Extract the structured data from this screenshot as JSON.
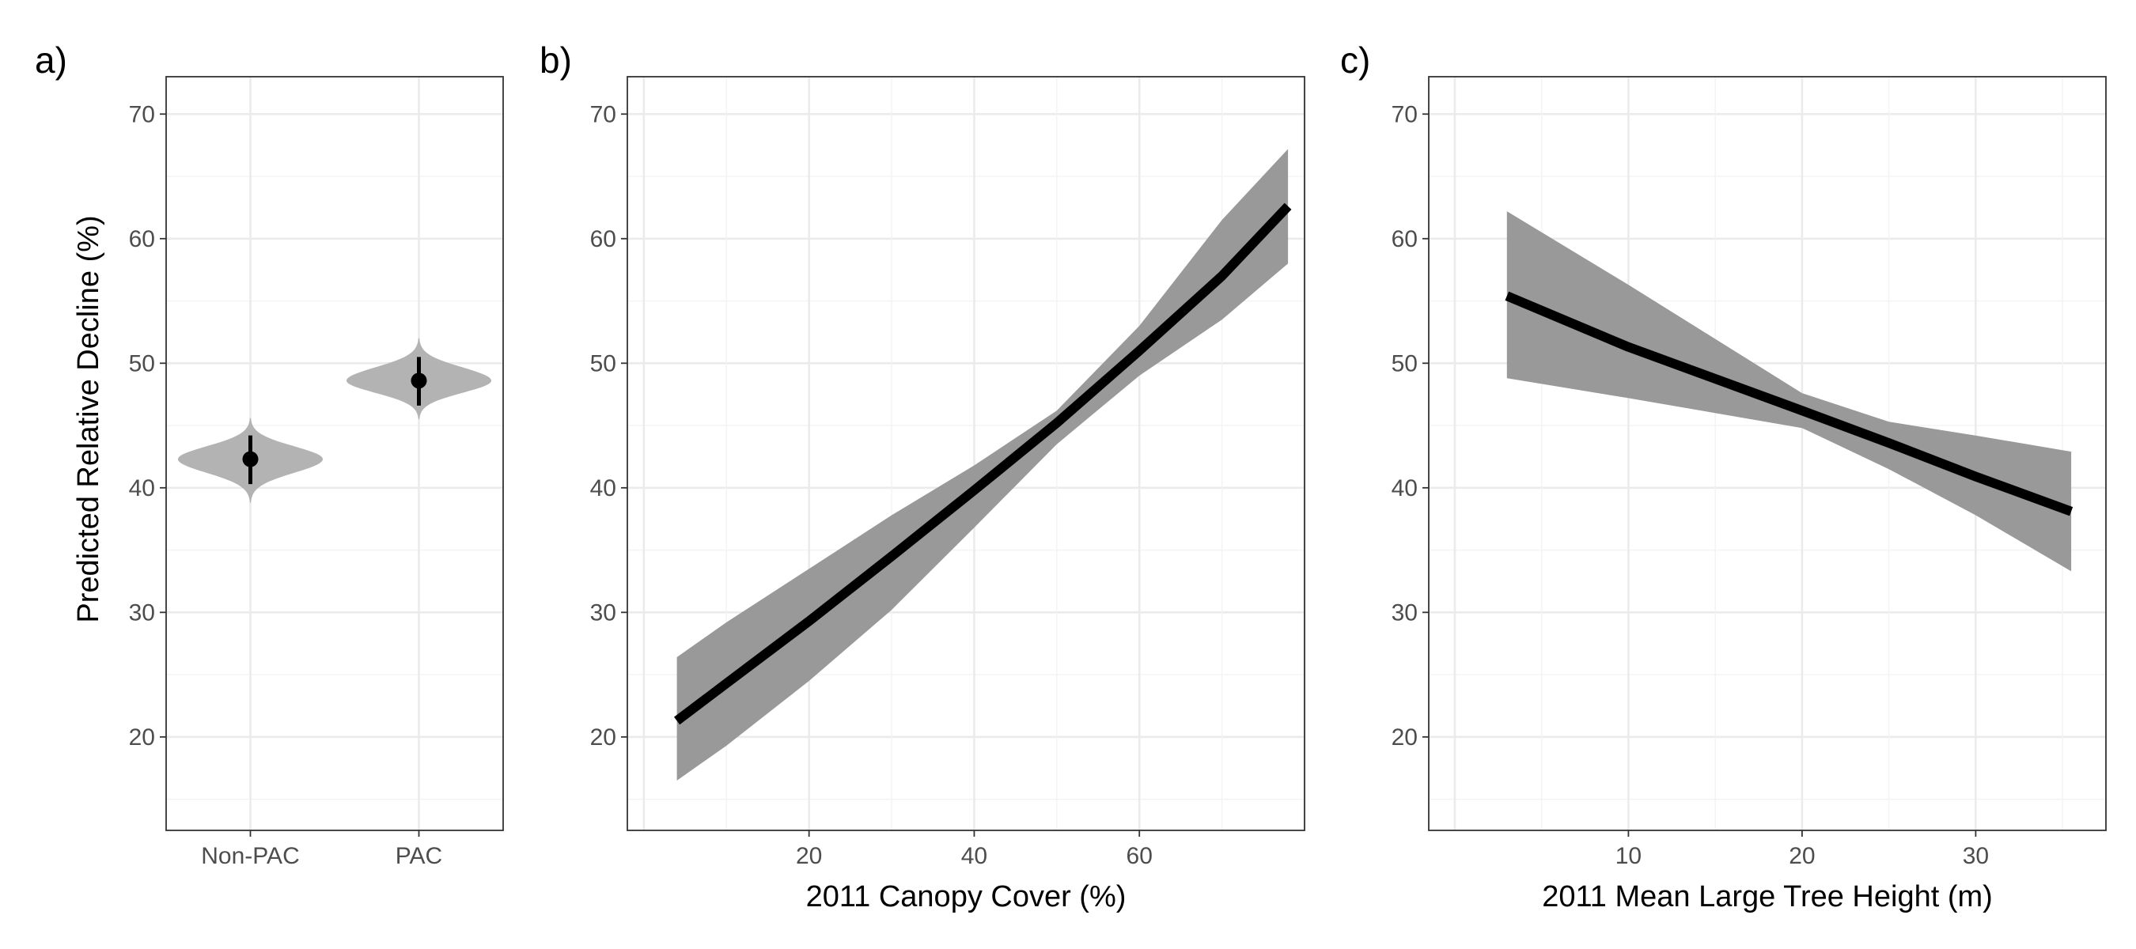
{
  "figure": {
    "ylabel": "Predicted Relative Decline (%)"
  },
  "chart_data": [
    {
      "panel_label": "a)",
      "type": "violin",
      "xlabel": "",
      "ylabel": "Predicted Relative Decline (%)",
      "ylim": [
        12.5,
        73
      ],
      "yticks": [
        20,
        30,
        40,
        50,
        60,
        70
      ],
      "categories": [
        "Non-PAC",
        "PAC"
      ],
      "series": [
        {
          "category": "Non-PAC",
          "mean": 42.3,
          "interval": [
            40.3,
            44.2
          ],
          "inner_interval": [
            41.5,
            43.1
          ],
          "range": [
            38.8,
            45.6
          ]
        },
        {
          "category": "PAC",
          "mean": 48.6,
          "interval": [
            46.6,
            50.5
          ],
          "inner_interval": [
            47.9,
            49.4
          ],
          "range": [
            45.5,
            52.0
          ]
        }
      ],
      "grid": true
    },
    {
      "panel_label": "b)",
      "type": "line",
      "xlabel": "2011 Canopy Cover (%)",
      "xlim": [
        -2,
        80
      ],
      "xticks": [
        20,
        40,
        60
      ],
      "ylim": [
        12.5,
        73
      ],
      "yticks": [
        20,
        30,
        40,
        50,
        60,
        70
      ],
      "x": [
        4,
        10,
        20,
        30,
        40,
        50,
        60,
        70,
        78
      ],
      "series": [
        {
          "name": "fit",
          "values": [
            21.3,
            24.3,
            29.3,
            34.5,
            39.8,
            45.2,
            51.0,
            57.0,
            62.6
          ]
        },
        {
          "name": "lower",
          "values": [
            16.5,
            19.3,
            24.5,
            30.2,
            36.8,
            43.5,
            49.0,
            53.5,
            58.0
          ]
        },
        {
          "name": "upper",
          "values": [
            26.4,
            29.2,
            33.5,
            37.8,
            41.8,
            46.2,
            53.0,
            61.5,
            67.2
          ]
        }
      ],
      "grid": true
    },
    {
      "panel_label": "c)",
      "type": "line",
      "xlabel": "2011 Mean Large Tree Height (m)",
      "xlim": [
        -1.5,
        37.5
      ],
      "xticks": [
        10,
        20,
        30
      ],
      "ylim": [
        12.5,
        73
      ],
      "yticks": [
        20,
        30,
        40,
        50,
        60,
        70
      ],
      "x": [
        3,
        10,
        20,
        25,
        30,
        35.5
      ],
      "series": [
        {
          "name": "fit",
          "values": [
            55.4,
            51.3,
            46.2,
            43.6,
            40.9,
            38.1
          ]
        },
        {
          "name": "lower",
          "values": [
            48.8,
            47.2,
            44.8,
            41.5,
            37.8,
            33.3
          ]
        },
        {
          "name": "upper",
          "values": [
            62.2,
            56.3,
            47.6,
            45.3,
            44.2,
            42.9
          ]
        }
      ],
      "grid": true
    }
  ]
}
